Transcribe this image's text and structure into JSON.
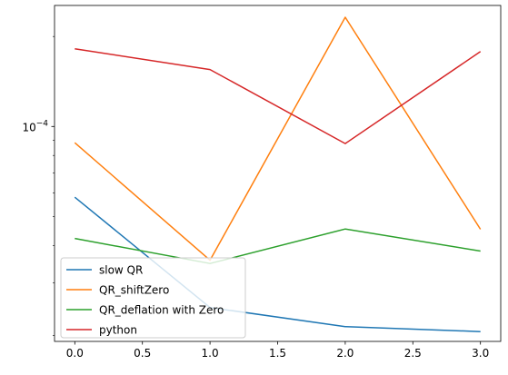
{
  "chart_data": {
    "type": "line",
    "title": "",
    "xlabel": "",
    "ylabel": "",
    "x": [
      0,
      1,
      2,
      3
    ],
    "xlim": [
      -0.15,
      3.15
    ],
    "xticks": [
      {
        "value": 0.0,
        "label": "0.0"
      },
      {
        "value": 0.5,
        "label": "0.5"
      },
      {
        "value": 1.0,
        "label": "1.0"
      },
      {
        "value": 1.5,
        "label": "1.5"
      },
      {
        "value": 2.0,
        "label": "2.0"
      },
      {
        "value": 2.5,
        "label": "2.5"
      },
      {
        "value": 3.0,
        "label": "3.0"
      }
    ],
    "yscale": "log",
    "ylim": [
      1.91e-05,
      0.000254
    ],
    "yticks": [
      {
        "value": 0.0001,
        "base": "10",
        "exp": "−4"
      }
    ],
    "grid": false,
    "legend": "lower-left",
    "series": [
      {
        "name": "slow QR",
        "color": "#1f77b4",
        "values": [
          5.8e-05,
          2.48e-05,
          2.14e-05,
          2.06e-05
        ]
      },
      {
        "name": "QR_shiftZero",
        "color": "#ff7f0e",
        "values": [
          8.82e-05,
          3.57e-05,
          0.000232,
          4.53e-05
        ]
      },
      {
        "name": "QR_deflation with Zero",
        "color": "#2ca02c",
        "values": [
          4.22e-05,
          3.48e-05,
          4.54e-05,
          3.83e-05
        ]
      },
      {
        "name": "python",
        "color": "#d62728",
        "values": [
          0.000182,
          0.000155,
          8.77e-05,
          0.000178
        ]
      }
    ]
  }
}
